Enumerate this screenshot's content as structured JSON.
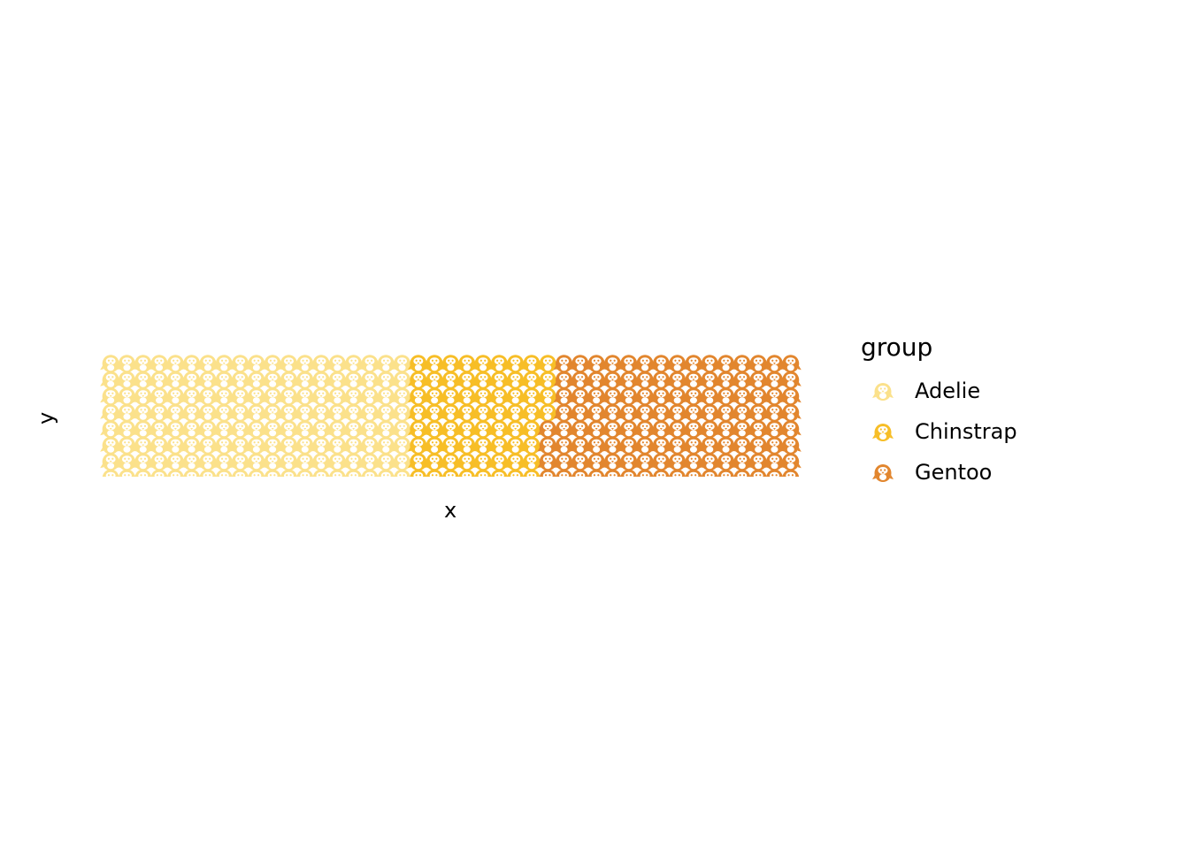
{
  "chart_data": {
    "type": "waffle",
    "title": "",
    "xlabel": "x",
    "ylabel": "y",
    "legend_title": "group",
    "legend_position": "right",
    "grid": false,
    "rows": 8,
    "series": [
      {
        "name": "Adelie",
        "color": "#FBE18B",
        "value": 152
      },
      {
        "name": "Chinstrap",
        "color": "#F7BE27",
        "value": 68
      },
      {
        "name": "Gentoo",
        "color": "#E2862E",
        "value": 124
      }
    ],
    "icon": "penguin-icon"
  }
}
